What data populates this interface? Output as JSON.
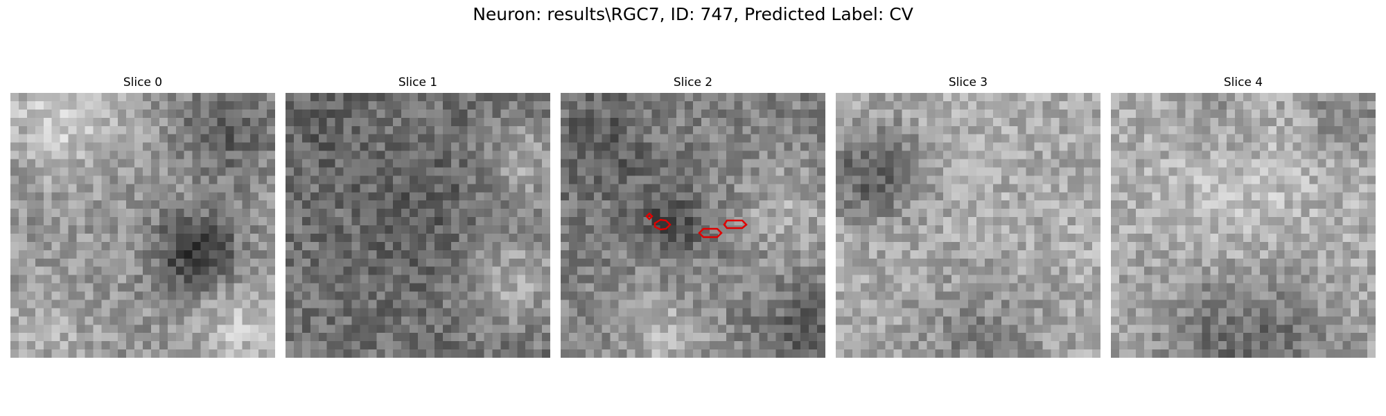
{
  "figure": {
    "title": "Neuron: results\\RGC7, ID: 747, Predicted Label: CV"
  },
  "panels": [
    {
      "title": "Slice 0"
    },
    {
      "title": "Slice 1"
    },
    {
      "title": "Slice 2"
    },
    {
      "title": "Slice 3"
    },
    {
      "title": "Slice 4"
    }
  ],
  "colors": {
    "background": "#ffffff",
    "contour": "#e00000"
  },
  "colormap": "gray"
}
